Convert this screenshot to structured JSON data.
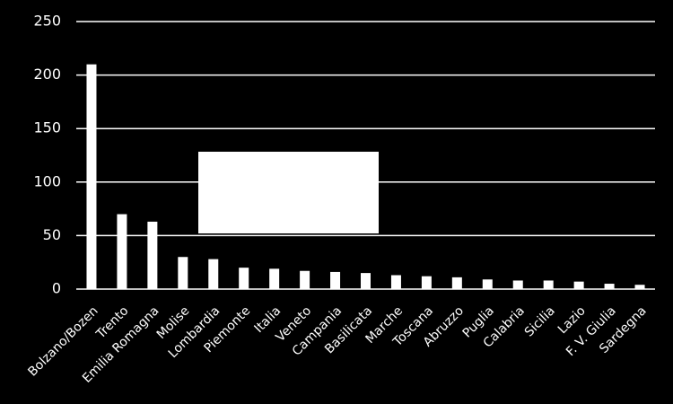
{
  "chart_data": {
    "type": "bar",
    "categories": [
      "Bolzano/Bozen",
      "Trento",
      "Emilia Romagna",
      "Molise",
      "Lombardia",
      "Piemonte",
      "Italia",
      "Veneto",
      "Campania",
      "Basilicata",
      "Marche",
      "Toscana",
      "Abruzzo",
      "Puglia",
      "Calabria",
      "Sicilia",
      "Lazio",
      "F. V. Giulia",
      "Sardegna"
    ],
    "values": [
      210,
      70,
      63,
      30,
      28,
      20,
      19,
      17,
      16,
      15,
      13,
      12,
      11,
      9,
      8,
      8,
      7,
      5,
      4
    ],
    "color": "#ffffff",
    "ylim": [
      0,
      250
    ],
    "yticks": [
      0,
      50,
      100,
      150,
      200,
      250
    ],
    "grid": true
  }
}
